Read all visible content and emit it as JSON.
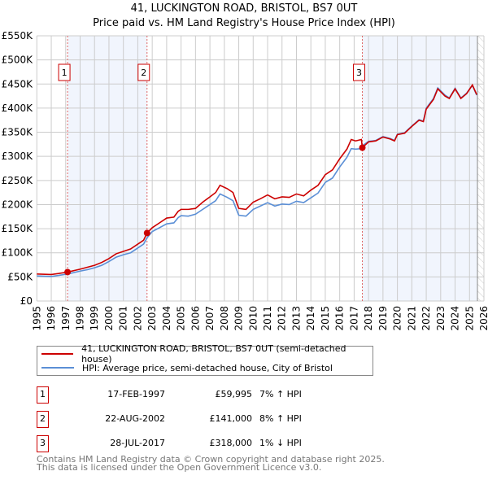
{
  "title": "41, LUCKINGTON ROAD, BRISTOL, BS7 0UT",
  "subtitle": "Price paid vs. HM Land Registry's House Price Index (HPI)",
  "chart_data": {
    "type": "line",
    "xlim": [
      1995,
      2026
    ],
    "ylim": [
      0,
      550000
    ],
    "y_ticks": [
      {
        "v": 0,
        "label": "£0"
      },
      {
        "v": 50000,
        "label": "£50K"
      },
      {
        "v": 100000,
        "label": "£100K"
      },
      {
        "v": 150000,
        "label": "£150K"
      },
      {
        "v": 200000,
        "label": "£200K"
      },
      {
        "v": 250000,
        "label": "£250K"
      },
      {
        "v": 300000,
        "label": "£300K"
      },
      {
        "v": 350000,
        "label": "£350K"
      },
      {
        "v": 400000,
        "label": "£400K"
      },
      {
        "v": 450000,
        "label": "£450K"
      },
      {
        "v": 500000,
        "label": "£500K"
      },
      {
        "v": 550000,
        "label": "£550K"
      }
    ],
    "x_ticks": [
      "1995",
      "1996",
      "1997",
      "1998",
      "1999",
      "2000",
      "2001",
      "2002",
      "2003",
      "2004",
      "2005",
      "2006",
      "2007",
      "2008",
      "2009",
      "2010",
      "2011",
      "2012",
      "2013",
      "2014",
      "2015",
      "2016",
      "2017",
      "2018",
      "2019",
      "2020",
      "2021",
      "2022",
      "2023",
      "2024",
      "2025",
      "2026"
    ],
    "grid": true,
    "shaded_ranges": [
      [
        1997.13,
        2002.64
      ],
      [
        2017.57,
        2025.55
      ]
    ],
    "hatched_from": 2025.55,
    "series": [
      {
        "name": "41, LUCKINGTON ROAD, BRISTOL, BS7 0UT (semi-detached house)",
        "color": "#cc0000",
        "x": [
          1995,
          1996,
          1996.5,
          1997.13,
          1998,
          1998.5,
          1999,
          1999.5,
          2000,
          2000.5,
          2001,
          2001.5,
          2002,
          2002.4,
          2002.64,
          2003,
          2003.5,
          2004,
          2004.5,
          2004.8,
          2005,
          2005.5,
          2006,
          2006.5,
          2007,
          2007.4,
          2007.7,
          2008.2,
          2008.6,
          2009,
          2009.5,
          2010,
          2010.5,
          2011,
          2011.5,
          2012,
          2012.5,
          2013,
          2013.5,
          2014,
          2014.5,
          2015,
          2015.5,
          2016,
          2016.5,
          2016.8,
          2017.1,
          2017.5,
          2017.57,
          2018,
          2018.5,
          2019,
          2019.5,
          2019.8,
          2020,
          2020.5,
          2021,
          2021.5,
          2021.8,
          2022,
          2022.5,
          2022.8,
          2023.3,
          2023.6,
          2024,
          2024.4,
          2024.8,
          2025.2,
          2025.5
        ],
        "y": [
          56000,
          55000,
          57000,
          59995,
          66000,
          70000,
          74000,
          80000,
          88000,
          98000,
          103000,
          108000,
          118000,
          126000,
          141000,
          152000,
          162000,
          172000,
          174000,
          186000,
          190000,
          190000,
          192000,
          205000,
          216000,
          225000,
          240000,
          233000,
          225000,
          192000,
          190000,
          205000,
          212000,
          220000,
          212000,
          216000,
          215000,
          222000,
          218000,
          230000,
          240000,
          262000,
          272000,
          295000,
          315000,
          335000,
          332000,
          335000,
          318000,
          330000,
          332000,
          340000,
          336000,
          332000,
          345000,
          348000,
          362000,
          375000,
          372000,
          398000,
          418000,
          440000,
          425000,
          420000,
          440000,
          420000,
          430000,
          448000,
          428000
        ]
      },
      {
        "name": "HPI: Average price, semi-detached house, City of Bristol",
        "color": "#5b8fd6",
        "x": [
          1995,
          1996,
          1996.5,
          1997.13,
          1998,
          1998.5,
          1999,
          1999.5,
          2000,
          2000.5,
          2001,
          2001.5,
          2002,
          2002.4,
          2002.64,
          2003,
          2003.5,
          2004,
          2004.5,
          2004.8,
          2005,
          2005.5,
          2006,
          2006.5,
          2007,
          2007.4,
          2007.7,
          2008.2,
          2008.6,
          2009,
          2009.5,
          2010,
          2010.5,
          2011,
          2011.5,
          2012,
          2012.5,
          2013,
          2013.5,
          2014,
          2014.5,
          2015,
          2015.5,
          2016,
          2016.5,
          2016.8,
          2017.1,
          2017.5,
          2017.57,
          2018,
          2018.5,
          2019,
          2019.5,
          2019.8,
          2020,
          2020.5,
          2021,
          2021.5,
          2021.8,
          2022,
          2022.5,
          2022.8,
          2023.3,
          2023.6,
          2024,
          2024.4,
          2024.8,
          2025.2,
          2025.5
        ],
        "y": [
          52000,
          51000,
          53000,
          56000,
          62000,
          65000,
          69000,
          74000,
          82000,
          91000,
          96000,
          100000,
          110000,
          118000,
          131000,
          144000,
          152000,
          160000,
          162000,
          173000,
          177000,
          176000,
          180000,
          190000,
          200000,
          208000,
          222000,
          215000,
          208000,
          178000,
          176000,
          190000,
          197000,
          204000,
          197000,
          201000,
          200000,
          207000,
          204000,
          214000,
          224000,
          246000,
          255000,
          278000,
          298000,
          316000,
          315000,
          316000,
          322000,
          331000,
          333000,
          341000,
          337000,
          333000,
          346000,
          349000,
          363000,
          376000,
          373000,
          400000,
          420000,
          442000,
          427000,
          421000,
          441000,
          421000,
          431000,
          447000,
          427000
        ]
      }
    ],
    "sales": [
      {
        "n": "1",
        "x": 1997.13,
        "y": 59995
      },
      {
        "n": "2",
        "x": 2002.64,
        "y": 141000
      },
      {
        "n": "3",
        "x": 2017.57,
        "y": 318000
      }
    ]
  },
  "legend": [
    "41, LUCKINGTON ROAD, BRISTOL, BS7 0UT (semi-detached house)",
    "HPI: Average price, semi-detached house, City of Bristol"
  ],
  "table": [
    {
      "n": "1",
      "date": "17-FEB-1997",
      "price": "£59,995",
      "hpi": "7% ↑ HPI"
    },
    {
      "n": "2",
      "date": "22-AUG-2002",
      "price": "£141,000",
      "hpi": "8% ↑ HPI"
    },
    {
      "n": "3",
      "date": "28-JUL-2017",
      "price": "£318,000",
      "hpi": "1% ↓ HPI"
    }
  ],
  "footer": [
    "Contains HM Land Registry data © Crown copyright and database right 2025.",
    "This data is licensed under the Open Government Licence v3.0."
  ]
}
